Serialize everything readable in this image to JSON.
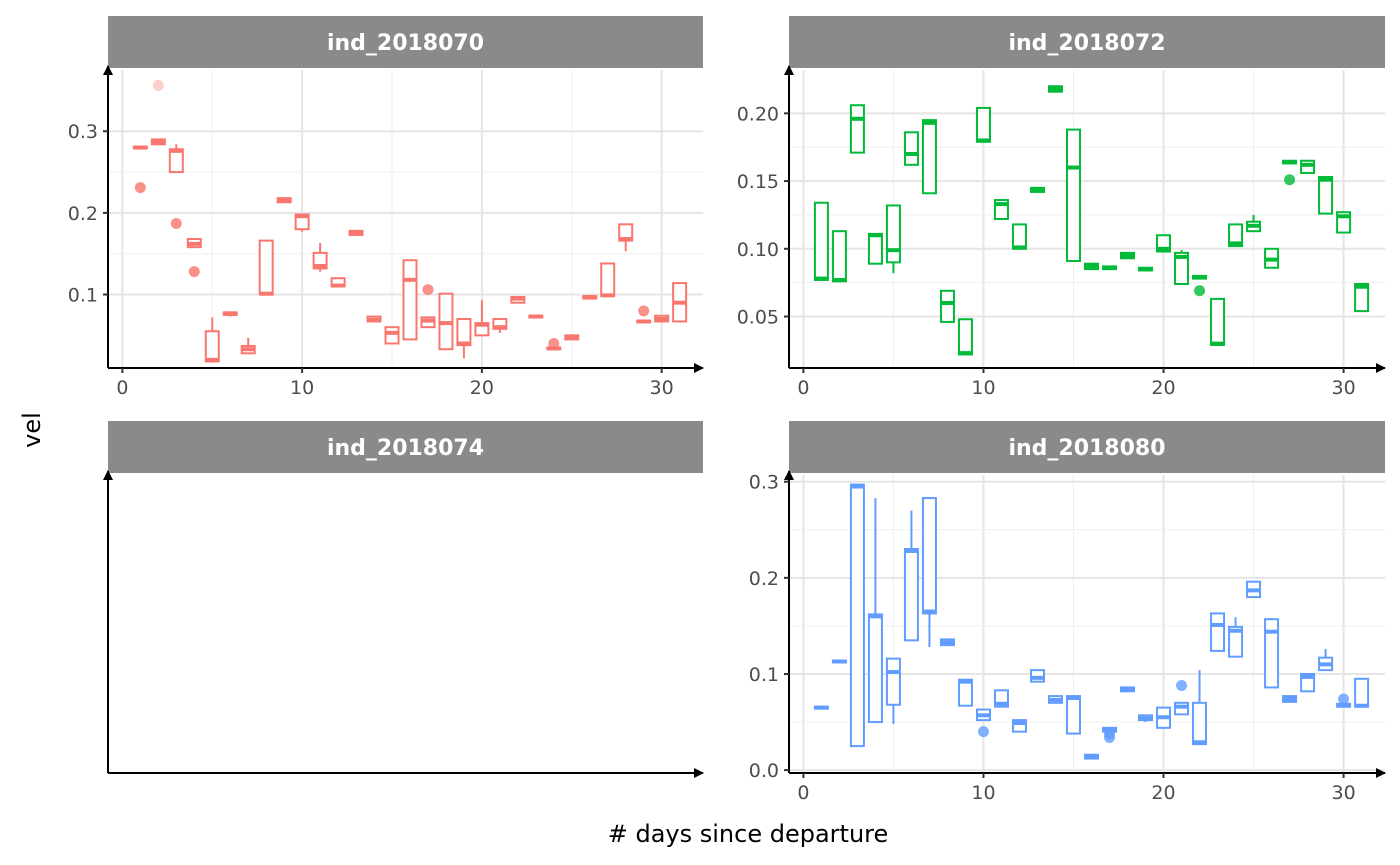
{
  "chart_data": {
    "type": "boxplot",
    "xlabel": "# days since departure",
    "ylabel": "vel",
    "facet_layout": "2x2",
    "x_scale": "free",
    "y_scale": "free",
    "grid": true,
    "legend": "none",
    "panels": [
      {
        "id": "ind_2018070",
        "strip": "ind_2018070",
        "color": "#F8766D",
        "xlim": [
          -0.8,
          32.3
        ],
        "ylim": [
          0.01,
          0.375
        ],
        "x_ticks": [
          0,
          10,
          20,
          30
        ],
        "y_ticks": [
          0.1,
          0.2,
          0.3
        ],
        "y_tick_labels": [
          "0.1",
          "0.2",
          "0.3"
        ],
        "boxes": [
          {
            "x": 1,
            "lo": 0.279,
            "q1": 0.279,
            "med": 0.28,
            "q3": 0.281,
            "hi": 0.282
          },
          {
            "x": 2,
            "lo": 0.283,
            "q1": 0.284,
            "med": 0.287,
            "q3": 0.29,
            "hi": 0.29
          },
          {
            "x": 3,
            "lo": 0.25,
            "q1": 0.25,
            "med": 0.276,
            "q3": 0.278,
            "hi": 0.284
          },
          {
            "x": 4,
            "lo": 0.158,
            "q1": 0.158,
            "med": 0.162,
            "q3": 0.168,
            "hi": 0.168
          },
          {
            "x": 5,
            "lo": 0.018,
            "q1": 0.018,
            "med": 0.02,
            "q3": 0.055,
            "hi": 0.072
          },
          {
            "x": 6,
            "lo": 0.073,
            "q1": 0.075,
            "med": 0.077,
            "q3": 0.078,
            "hi": 0.079
          },
          {
            "x": 7,
            "lo": 0.028,
            "q1": 0.028,
            "med": 0.033,
            "q3": 0.037,
            "hi": 0.047
          },
          {
            "x": 8,
            "lo": 0.1,
            "q1": 0.1,
            "med": 0.101,
            "q3": 0.166,
            "hi": 0.166
          },
          {
            "x": 9,
            "lo": 0.212,
            "q1": 0.213,
            "med": 0.215,
            "q3": 0.218,
            "hi": 0.219
          },
          {
            "x": 10,
            "lo": 0.177,
            "q1": 0.18,
            "med": 0.196,
            "q3": 0.198,
            "hi": 0.198
          },
          {
            "x": 11,
            "lo": 0.128,
            "q1": 0.132,
            "med": 0.135,
            "q3": 0.151,
            "hi": 0.163
          },
          {
            "x": 12,
            "lo": 0.11,
            "q1": 0.11,
            "med": 0.111,
            "q3": 0.12,
            "hi": 0.12
          },
          {
            "x": 13,
            "lo": 0.173,
            "q1": 0.173,
            "med": 0.176,
            "q3": 0.178,
            "hi": 0.178
          },
          {
            "x": 14,
            "lo": 0.067,
            "q1": 0.067,
            "med": 0.069,
            "q3": 0.073,
            "hi": 0.073
          },
          {
            "x": 15,
            "lo": 0.04,
            "q1": 0.04,
            "med": 0.053,
            "q3": 0.06,
            "hi": 0.061
          },
          {
            "x": 16,
            "lo": 0.045,
            "q1": 0.045,
            "med": 0.118,
            "q3": 0.142,
            "hi": 0.142
          },
          {
            "x": 17,
            "lo": 0.06,
            "q1": 0.06,
            "med": 0.068,
            "q3": 0.072,
            "hi": 0.072
          },
          {
            "x": 18,
            "lo": 0.033,
            "q1": 0.033,
            "med": 0.065,
            "q3": 0.101,
            "hi": 0.101
          },
          {
            "x": 19,
            "lo": 0.022,
            "q1": 0.038,
            "med": 0.04,
            "q3": 0.07,
            "hi": 0.07
          },
          {
            "x": 20,
            "lo": 0.05,
            "q1": 0.05,
            "med": 0.063,
            "q3": 0.065,
            "hi": 0.093
          },
          {
            "x": 21,
            "lo": 0.053,
            "q1": 0.058,
            "med": 0.06,
            "q3": 0.07,
            "hi": 0.07
          },
          {
            "x": 22,
            "lo": 0.09,
            "q1": 0.09,
            "med": 0.095,
            "q3": 0.097,
            "hi": 0.097
          },
          {
            "x": 23,
            "lo": 0.071,
            "q1": 0.072,
            "med": 0.073,
            "q3": 0.074,
            "hi": 0.074
          },
          {
            "x": 24,
            "lo": 0.033,
            "q1": 0.033,
            "med": 0.034,
            "q3": 0.035,
            "hi": 0.035
          },
          {
            "x": 25,
            "lo": 0.045,
            "q1": 0.045,
            "med": 0.048,
            "q3": 0.05,
            "hi": 0.05
          },
          {
            "x": 26,
            "lo": 0.095,
            "q1": 0.095,
            "med": 0.097,
            "q3": 0.098,
            "hi": 0.098
          },
          {
            "x": 27,
            "lo": 0.098,
            "q1": 0.098,
            "med": 0.099,
            "q3": 0.138,
            "hi": 0.138
          },
          {
            "x": 28,
            "lo": 0.153,
            "q1": 0.166,
            "med": 0.168,
            "q3": 0.186,
            "hi": 0.186
          },
          {
            "x": 29,
            "lo": 0.066,
            "q1": 0.066,
            "med": 0.067,
            "q3": 0.068,
            "hi": 0.068
          },
          {
            "x": 30,
            "lo": 0.067,
            "q1": 0.067,
            "med": 0.07,
            "q3": 0.074,
            "hi": 0.074
          },
          {
            "x": 31,
            "lo": 0.067,
            "q1": 0.067,
            "med": 0.09,
            "q3": 0.114,
            "hi": 0.114
          }
        ],
        "outliers": [
          {
            "x": 1,
            "y": 0.231
          },
          {
            "x": 2,
            "y": 0.356,
            "faint": true
          },
          {
            "x": 3,
            "y": 0.187
          },
          {
            "x": 4,
            "y": 0.128
          },
          {
            "x": 17,
            "y": 0.106
          },
          {
            "x": 24,
            "y": 0.04
          },
          {
            "x": 29,
            "y": 0.08
          }
        ]
      },
      {
        "id": "ind_2018072",
        "strip": "ind_2018072",
        "color": "#00BA38",
        "xlim": [
          -0.8,
          32.3
        ],
        "ylim": [
          0.012,
          0.232
        ],
        "x_ticks": [
          0,
          10,
          20,
          30
        ],
        "y_ticks": [
          0.05,
          0.1,
          0.15,
          0.2
        ],
        "y_tick_labels": [
          "0.05",
          "0.10",
          "0.15",
          "0.20"
        ],
        "boxes": [
          {
            "x": 1,
            "lo": 0.077,
            "q1": 0.077,
            "med": 0.078,
            "q3": 0.134,
            "hi": 0.134
          },
          {
            "x": 2,
            "lo": 0.076,
            "q1": 0.076,
            "med": 0.077,
            "q3": 0.113,
            "hi": 0.113
          },
          {
            "x": 3,
            "lo": 0.171,
            "q1": 0.171,
            "med": 0.196,
            "q3": 0.206,
            "hi": 0.206
          },
          {
            "x": 4,
            "lo": 0.089,
            "q1": 0.089,
            "med": 0.11,
            "q3": 0.111,
            "hi": 0.111
          },
          {
            "x": 5,
            "lo": 0.082,
            "q1": 0.09,
            "med": 0.099,
            "q3": 0.132,
            "hi": 0.132
          },
          {
            "x": 6,
            "lo": 0.162,
            "q1": 0.162,
            "med": 0.17,
            "q3": 0.186,
            "hi": 0.186
          },
          {
            "x": 7,
            "lo": 0.141,
            "q1": 0.141,
            "med": 0.193,
            "q3": 0.195,
            "hi": 0.195
          },
          {
            "x": 8,
            "lo": 0.046,
            "q1": 0.046,
            "med": 0.06,
            "q3": 0.069,
            "hi": 0.069
          },
          {
            "x": 9,
            "lo": 0.022,
            "q1": 0.022,
            "med": 0.023,
            "q3": 0.048,
            "hi": 0.048
          },
          {
            "x": 10,
            "lo": 0.179,
            "q1": 0.179,
            "med": 0.18,
            "q3": 0.204,
            "hi": 0.204
          },
          {
            "x": 11,
            "lo": 0.122,
            "q1": 0.122,
            "med": 0.133,
            "q3": 0.136,
            "hi": 0.136
          },
          {
            "x": 12,
            "lo": 0.1,
            "q1": 0.1,
            "med": 0.101,
            "q3": 0.118,
            "hi": 0.118
          },
          {
            "x": 13,
            "lo": 0.142,
            "q1": 0.142,
            "med": 0.143,
            "q3": 0.145,
            "hi": 0.145
          },
          {
            "x": 14,
            "lo": 0.216,
            "q1": 0.216,
            "med": 0.218,
            "q3": 0.22,
            "hi": 0.22
          },
          {
            "x": 15,
            "lo": 0.091,
            "q1": 0.091,
            "med": 0.16,
            "q3": 0.188,
            "hi": 0.188
          },
          {
            "x": 16,
            "lo": 0.085,
            "q1": 0.085,
            "med": 0.087,
            "q3": 0.089,
            "hi": 0.089
          },
          {
            "x": 17,
            "lo": 0.085,
            "q1": 0.085,
            "med": 0.086,
            "q3": 0.087,
            "hi": 0.087
          },
          {
            "x": 18,
            "lo": 0.093,
            "q1": 0.093,
            "med": 0.095,
            "q3": 0.097,
            "hi": 0.097
          },
          {
            "x": 19,
            "lo": 0.084,
            "q1": 0.084,
            "med": 0.085,
            "q3": 0.086,
            "hi": 0.086
          },
          {
            "x": 20,
            "lo": 0.098,
            "q1": 0.098,
            "med": 0.1,
            "q3": 0.11,
            "hi": 0.11
          },
          {
            "x": 21,
            "lo": 0.074,
            "q1": 0.074,
            "med": 0.094,
            "q3": 0.097,
            "hi": 0.099
          },
          {
            "x": 22,
            "lo": 0.078,
            "q1": 0.078,
            "med": 0.079,
            "q3": 0.08,
            "hi": 0.08
          },
          {
            "x": 23,
            "lo": 0.029,
            "q1": 0.029,
            "med": 0.03,
            "q3": 0.063,
            "hi": 0.063
          },
          {
            "x": 24,
            "lo": 0.102,
            "q1": 0.102,
            "med": 0.104,
            "q3": 0.118,
            "hi": 0.118
          },
          {
            "x": 25,
            "lo": 0.113,
            "q1": 0.113,
            "med": 0.117,
            "q3": 0.12,
            "hi": 0.125
          },
          {
            "x": 26,
            "lo": 0.086,
            "q1": 0.086,
            "med": 0.092,
            "q3": 0.1,
            "hi": 0.1
          },
          {
            "x": 27,
            "lo": 0.163,
            "q1": 0.163,
            "med": 0.164,
            "q3": 0.165,
            "hi": 0.165
          },
          {
            "x": 28,
            "lo": 0.156,
            "q1": 0.156,
            "med": 0.162,
            "q3": 0.165,
            "hi": 0.165
          },
          {
            "x": 29,
            "lo": 0.126,
            "q1": 0.126,
            "med": 0.151,
            "q3": 0.153,
            "hi": 0.153
          },
          {
            "x": 30,
            "lo": 0.112,
            "q1": 0.112,
            "med": 0.124,
            "q3": 0.127,
            "hi": 0.127
          },
          {
            "x": 31,
            "lo": 0.054,
            "q1": 0.054,
            "med": 0.072,
            "q3": 0.074,
            "hi": 0.074
          }
        ],
        "outliers": [
          {
            "x": 22,
            "y": 0.069
          },
          {
            "x": 27,
            "y": 0.151
          }
        ]
      },
      {
        "id": "ind_2018074",
        "strip": "ind_2018074",
        "color": "#619CFF",
        "xlim": [
          0,
          1
        ],
        "ylim": [
          0,
          1
        ],
        "x_ticks": [],
        "y_ticks": [],
        "y_tick_labels": [],
        "boxes": [],
        "outliers": []
      },
      {
        "id": "ind_2018080",
        "strip": "ind_2018080",
        "color": "#619CFF",
        "xlim": [
          -0.8,
          32.3
        ],
        "ylim": [
          -0.003,
          0.307
        ],
        "x_ticks": [
          0,
          10,
          20,
          30
        ],
        "y_ticks": [
          0,
          0.1,
          0.2,
          0.3
        ],
        "y_tick_labels": [
          "0.0",
          "0.1",
          "0.2",
          "0.3"
        ],
        "boxes": [
          {
            "x": 1,
            "lo": 0.064,
            "q1": 0.064,
            "med": 0.065,
            "q3": 0.066,
            "hi": 0.066
          },
          {
            "x": 2,
            "lo": 0.112,
            "q1": 0.112,
            "med": 0.113,
            "q3": 0.114,
            "hi": 0.114
          },
          {
            "x": 3,
            "lo": 0.025,
            "q1": 0.025,
            "med": 0.295,
            "q3": 0.297,
            "hi": 0.297
          },
          {
            "x": 4,
            "lo": 0.05,
            "q1": 0.05,
            "med": 0.16,
            "q3": 0.162,
            "hi": 0.283
          },
          {
            "x": 5,
            "lo": 0.048,
            "q1": 0.068,
            "med": 0.102,
            "q3": 0.116,
            "hi": 0.116
          },
          {
            "x": 6,
            "lo": 0.135,
            "q1": 0.135,
            "med": 0.228,
            "q3": 0.23,
            "hi": 0.27
          },
          {
            "x": 7,
            "lo": 0.128,
            "q1": 0.163,
            "med": 0.165,
            "q3": 0.283,
            "hi": 0.283
          },
          {
            "x": 8,
            "lo": 0.13,
            "q1": 0.13,
            "med": 0.133,
            "q3": 0.136,
            "hi": 0.136
          },
          {
            "x": 9,
            "lo": 0.067,
            "q1": 0.067,
            "med": 0.092,
            "q3": 0.094,
            "hi": 0.094
          },
          {
            "x": 10,
            "lo": 0.052,
            "q1": 0.052,
            "med": 0.057,
            "q3": 0.063,
            "hi": 0.063
          },
          {
            "x": 11,
            "lo": 0.066,
            "q1": 0.066,
            "med": 0.069,
            "q3": 0.083,
            "hi": 0.083
          },
          {
            "x": 12,
            "lo": 0.04,
            "q1": 0.04,
            "med": 0.049,
            "q3": 0.052,
            "hi": 0.052
          },
          {
            "x": 13,
            "lo": 0.092,
            "q1": 0.092,
            "med": 0.096,
            "q3": 0.104,
            "hi": 0.104
          },
          {
            "x": 14,
            "lo": 0.07,
            "q1": 0.07,
            "med": 0.073,
            "q3": 0.077,
            "hi": 0.077
          },
          {
            "x": 15,
            "lo": 0.038,
            "q1": 0.038,
            "med": 0.075,
            "q3": 0.077,
            "hi": 0.077
          },
          {
            "x": 16,
            "lo": 0.012,
            "q1": 0.012,
            "med": 0.014,
            "q3": 0.016,
            "hi": 0.016
          },
          {
            "x": 17,
            "lo": 0.04,
            "q1": 0.04,
            "med": 0.042,
            "q3": 0.044,
            "hi": 0.044
          },
          {
            "x": 18,
            "lo": 0.082,
            "q1": 0.082,
            "med": 0.084,
            "q3": 0.086,
            "hi": 0.086
          },
          {
            "x": 19,
            "lo": 0.05,
            "q1": 0.052,
            "med": 0.054,
            "q3": 0.057,
            "hi": 0.057
          },
          {
            "x": 20,
            "lo": 0.044,
            "q1": 0.044,
            "med": 0.055,
            "q3": 0.065,
            "hi": 0.065
          },
          {
            "x": 21,
            "lo": 0.058,
            "q1": 0.058,
            "med": 0.066,
            "q3": 0.07,
            "hi": 0.07
          },
          {
            "x": 22,
            "lo": 0.027,
            "q1": 0.027,
            "med": 0.029,
            "q3": 0.07,
            "hi": 0.104
          },
          {
            "x": 23,
            "lo": 0.124,
            "q1": 0.124,
            "med": 0.151,
            "q3": 0.163,
            "hi": 0.163
          },
          {
            "x": 24,
            "lo": 0.118,
            "q1": 0.118,
            "med": 0.145,
            "q3": 0.149,
            "hi": 0.159
          },
          {
            "x": 25,
            "lo": 0.18,
            "q1": 0.18,
            "med": 0.187,
            "q3": 0.196,
            "hi": 0.196
          },
          {
            "x": 26,
            "lo": 0.086,
            "q1": 0.086,
            "med": 0.144,
            "q3": 0.157,
            "hi": 0.157
          },
          {
            "x": 27,
            "lo": 0.071,
            "q1": 0.071,
            "med": 0.074,
            "q3": 0.077,
            "hi": 0.077
          },
          {
            "x": 28,
            "lo": 0.082,
            "q1": 0.082,
            "med": 0.097,
            "q3": 0.1,
            "hi": 0.1
          },
          {
            "x": 29,
            "lo": 0.104,
            "q1": 0.104,
            "med": 0.11,
            "q3": 0.117,
            "hi": 0.126
          },
          {
            "x": 30,
            "lo": 0.066,
            "q1": 0.066,
            "med": 0.067,
            "q3": 0.069,
            "hi": 0.069
          },
          {
            "x": 31,
            "lo": 0.066,
            "q1": 0.066,
            "med": 0.067,
            "q3": 0.095,
            "hi": 0.095
          }
        ],
        "outliers": [
          {
            "x": 10,
            "y": 0.04
          },
          {
            "x": 17,
            "y": 0.034
          },
          {
            "x": 17,
            "y": 0.038
          },
          {
            "x": 21,
            "y": 0.088
          },
          {
            "x": 30,
            "y": 0.074
          }
        ]
      }
    ]
  }
}
